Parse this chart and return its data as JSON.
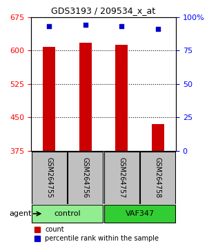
{
  "title": "GDS3193 / 209534_x_at",
  "samples": [
    "GSM264755",
    "GSM264756",
    "GSM264757",
    "GSM264758"
  ],
  "groups": [
    "control",
    "control",
    "VAF347",
    "VAF347"
  ],
  "group_labels": [
    "control",
    "VAF347"
  ],
  "group_colors": [
    "#90EE90",
    "#32CD32"
  ],
  "count_values": [
    608,
    618,
    613,
    435
  ],
  "percentile_values": [
    93,
    94,
    93,
    91
  ],
  "ylim_left": [
    375,
    675
  ],
  "ylim_right": [
    0,
    100
  ],
  "yticks_left": [
    375,
    450,
    525,
    600,
    675
  ],
  "yticks_right": [
    0,
    25,
    50,
    75,
    100
  ],
  "yright_labels": [
    "0",
    "25",
    "50",
    "75",
    "100%"
  ],
  "bar_color": "#CC0000",
  "dot_color": "#0000CC",
  "bar_width": 0.35,
  "background_color": "#ffffff",
  "plot_bg_color": "#ffffff",
  "grid_color": "#000000",
  "sample_box_color": "#C0C0C0"
}
